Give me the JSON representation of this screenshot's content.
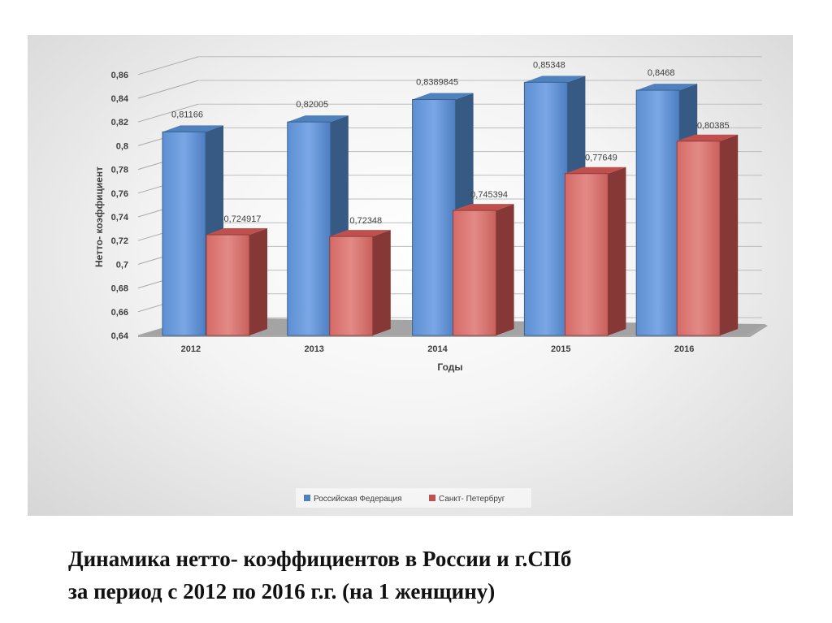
{
  "caption": {
    "line1": "Динамика нетто- коэффициентов в России и г.СПб",
    "line2": "за период с 2012 по 2016 г.г. (на 1 женщину)"
  },
  "colors": {
    "series_rf": "#4f81bd",
    "series_spb": "#c0504d"
  },
  "chart_data": {
    "type": "bar",
    "categories": [
      "2012",
      "2013",
      "2014",
      "2015",
      "2016"
    ],
    "series": [
      {
        "name": "Российская Федерация",
        "values": [
          0.81166,
          0.82005,
          0.8389845,
          0.85348,
          0.8468
        ],
        "labels": [
          "0,81166",
          "0,82005",
          "0,8389845",
          "0,85348",
          "0,8468"
        ]
      },
      {
        "name": "Санкт- Петербруг",
        "values": [
          0.724917,
          0.72348,
          0.745394,
          0.77649,
          0.80385
        ],
        "labels": [
          "0,724917",
          "0,72348",
          "0,745394",
          "0,77649",
          "0,80385"
        ]
      }
    ],
    "xlabel": "Годы",
    "ylabel": "Нетто- коэффициент",
    "ylim": [
      0.64,
      0.86
    ],
    "yticks": [
      "0,64",
      "0,66",
      "0,68",
      "0,7",
      "0,72",
      "0,74",
      "0,76",
      "0,78",
      "0,8",
      "0,82",
      "0,84",
      "0,86"
    ],
    "grid": true,
    "legend_position": "bottom",
    "style": "3d-clustered-column"
  }
}
